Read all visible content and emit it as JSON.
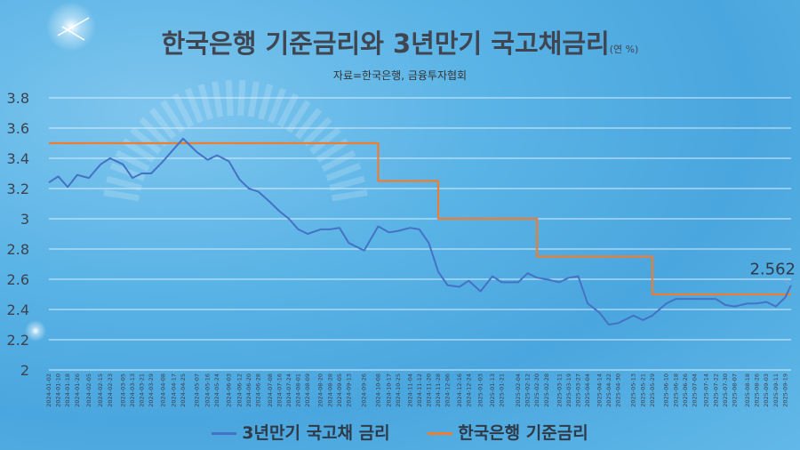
{
  "title": "한국은행 기준금리와 3년만기 국고채금리",
  "unit": "(연 %)",
  "source": "자료=한국은행, 금융투자협회",
  "colors": {
    "bond": "#4472c4",
    "base": "#ed7d31"
  },
  "chart_data": {
    "type": "line",
    "ylim": [
      2,
      3.8
    ],
    "yticks": [
      "2",
      "2.2",
      "2.4",
      "2.6",
      "2.8",
      "3",
      "3.2",
      "3.4",
      "3.6",
      "3.8"
    ],
    "grid": true,
    "legend": "bottom",
    "xticks": [
      "2024-01-02",
      "2024-01-10",
      "2024-01-18",
      "2024-01-26",
      "2024-02-05",
      "2024-02-15",
      "2024-02-23",
      "2024-03-05",
      "2024-03-13",
      "2024-03-21",
      "2024-03-29",
      "2024-04-08",
      "2024-04-17",
      "2024-04-25",
      "2024-05-07",
      "2024-05-16",
      "2024-05-24",
      "2024-06-03",
      "2024-06-12",
      "2024-06-20",
      "2024-06-28",
      "2024-07-08",
      "2024-07-16",
      "2024-07-24",
      "2024-08-01",
      "2024-08-09",
      "2024-08-20",
      "2024-08-28",
      "2024-09-05",
      "2024-09-13",
      "2024-09-26",
      "2024-10-08",
      "2024-10-17",
      "2024-10-25",
      "2024-11-04",
      "2024-11-12",
      "2024-11-20",
      "2024-11-28",
      "2024-12-06",
      "2024-12-16",
      "2024-12-24",
      "2025-01-03",
      "2025-01-13",
      "2025-01-21",
      "2025-02-04",
      "2025-02-12",
      "2025-02-20",
      "2025-02-28",
      "2025-03-11",
      "2025-03-19",
      "2025-03-27",
      "2025-04-04",
      "2025-04-14",
      "2025-04-22",
      "2025-04-30",
      "2025-05-13",
      "2025-05-21",
      "2025-05-29",
      "2025-06-10",
      "2025-06-18",
      "2025-06-26",
      "2025-07-04",
      "2025-07-14",
      "2025-07-22",
      "2025-07-30",
      "2025-08-07",
      "2025-08-18",
      "2025-08-26",
      "2025-09-03",
      "2025-09-11",
      "2025-09-19"
    ],
    "series": [
      {
        "name": "3년만기 국고채 금리",
        "x": [
          "2024-01-02",
          "2024-01-10",
          "2024-01-18",
          "2024-01-26",
          "2024-02-05",
          "2024-02-15",
          "2024-02-23",
          "2024-03-05",
          "2024-03-13",
          "2024-03-21",
          "2024-03-29",
          "2024-04-08",
          "2024-04-17",
          "2024-04-25",
          "2024-05-07",
          "2024-05-16",
          "2024-05-24",
          "2024-06-03",
          "2024-06-12",
          "2024-06-20",
          "2024-06-28",
          "2024-07-08",
          "2024-07-16",
          "2024-07-24",
          "2024-08-01",
          "2024-08-09",
          "2024-08-20",
          "2024-08-28",
          "2024-09-05",
          "2024-09-13",
          "2024-09-26",
          "2024-10-08",
          "2024-10-17",
          "2024-10-25",
          "2024-11-04",
          "2024-11-12",
          "2024-11-20",
          "2024-11-28",
          "2024-12-06",
          "2024-12-16",
          "2024-12-24",
          "2025-01-03",
          "2025-01-13",
          "2025-01-21",
          "2025-02-04",
          "2025-02-12",
          "2025-02-20",
          "2025-02-28",
          "2025-03-11",
          "2025-03-19",
          "2025-03-27",
          "2025-04-04",
          "2025-04-14",
          "2025-04-22",
          "2025-04-30",
          "2025-05-13",
          "2025-05-21",
          "2025-05-29",
          "2025-06-10",
          "2025-06-18",
          "2025-06-26",
          "2025-07-04",
          "2025-07-14",
          "2025-07-22",
          "2025-07-30",
          "2025-08-07",
          "2025-08-18",
          "2025-08-26",
          "2025-09-03",
          "2025-09-11",
          "2025-09-19",
          "2025-09-24"
        ],
        "values": [
          3.24,
          3.28,
          3.21,
          3.29,
          3.27,
          3.36,
          3.4,
          3.36,
          3.27,
          3.3,
          3.3,
          3.38,
          3.46,
          3.53,
          3.44,
          3.39,
          3.42,
          3.38,
          3.26,
          3.2,
          3.18,
          3.11,
          3.05,
          3.0,
          2.93,
          2.9,
          2.93,
          2.93,
          2.94,
          2.84,
          2.79,
          2.95,
          2.91,
          2.92,
          2.94,
          2.93,
          2.84,
          2.65,
          2.56,
          2.55,
          2.59,
          2.52,
          2.62,
          2.58,
          2.58,
          2.64,
          2.61,
          2.6,
          2.58,
          2.61,
          2.62,
          2.44,
          2.38,
          2.3,
          2.31,
          2.36,
          2.33,
          2.36,
          2.44,
          2.47,
          2.47,
          2.47,
          2.47,
          2.47,
          2.43,
          2.42,
          2.44,
          2.44,
          2.45,
          2.42,
          2.48,
          2.562
        ]
      },
      {
        "name": "한국은행 기준금리",
        "x": [
          "2024-01-02",
          "2024-10-08",
          "2024-10-08",
          "2024-11-28",
          "2024-11-28",
          "2025-02-20",
          "2025-02-20",
          "2025-05-29",
          "2025-05-29",
          "2025-09-24"
        ],
        "values": [
          3.5,
          3.5,
          3.25,
          3.25,
          3.0,
          3.0,
          2.75,
          2.75,
          2.5,
          2.5
        ]
      }
    ],
    "annotations": [
      {
        "text": "2.562"
      }
    ]
  }
}
